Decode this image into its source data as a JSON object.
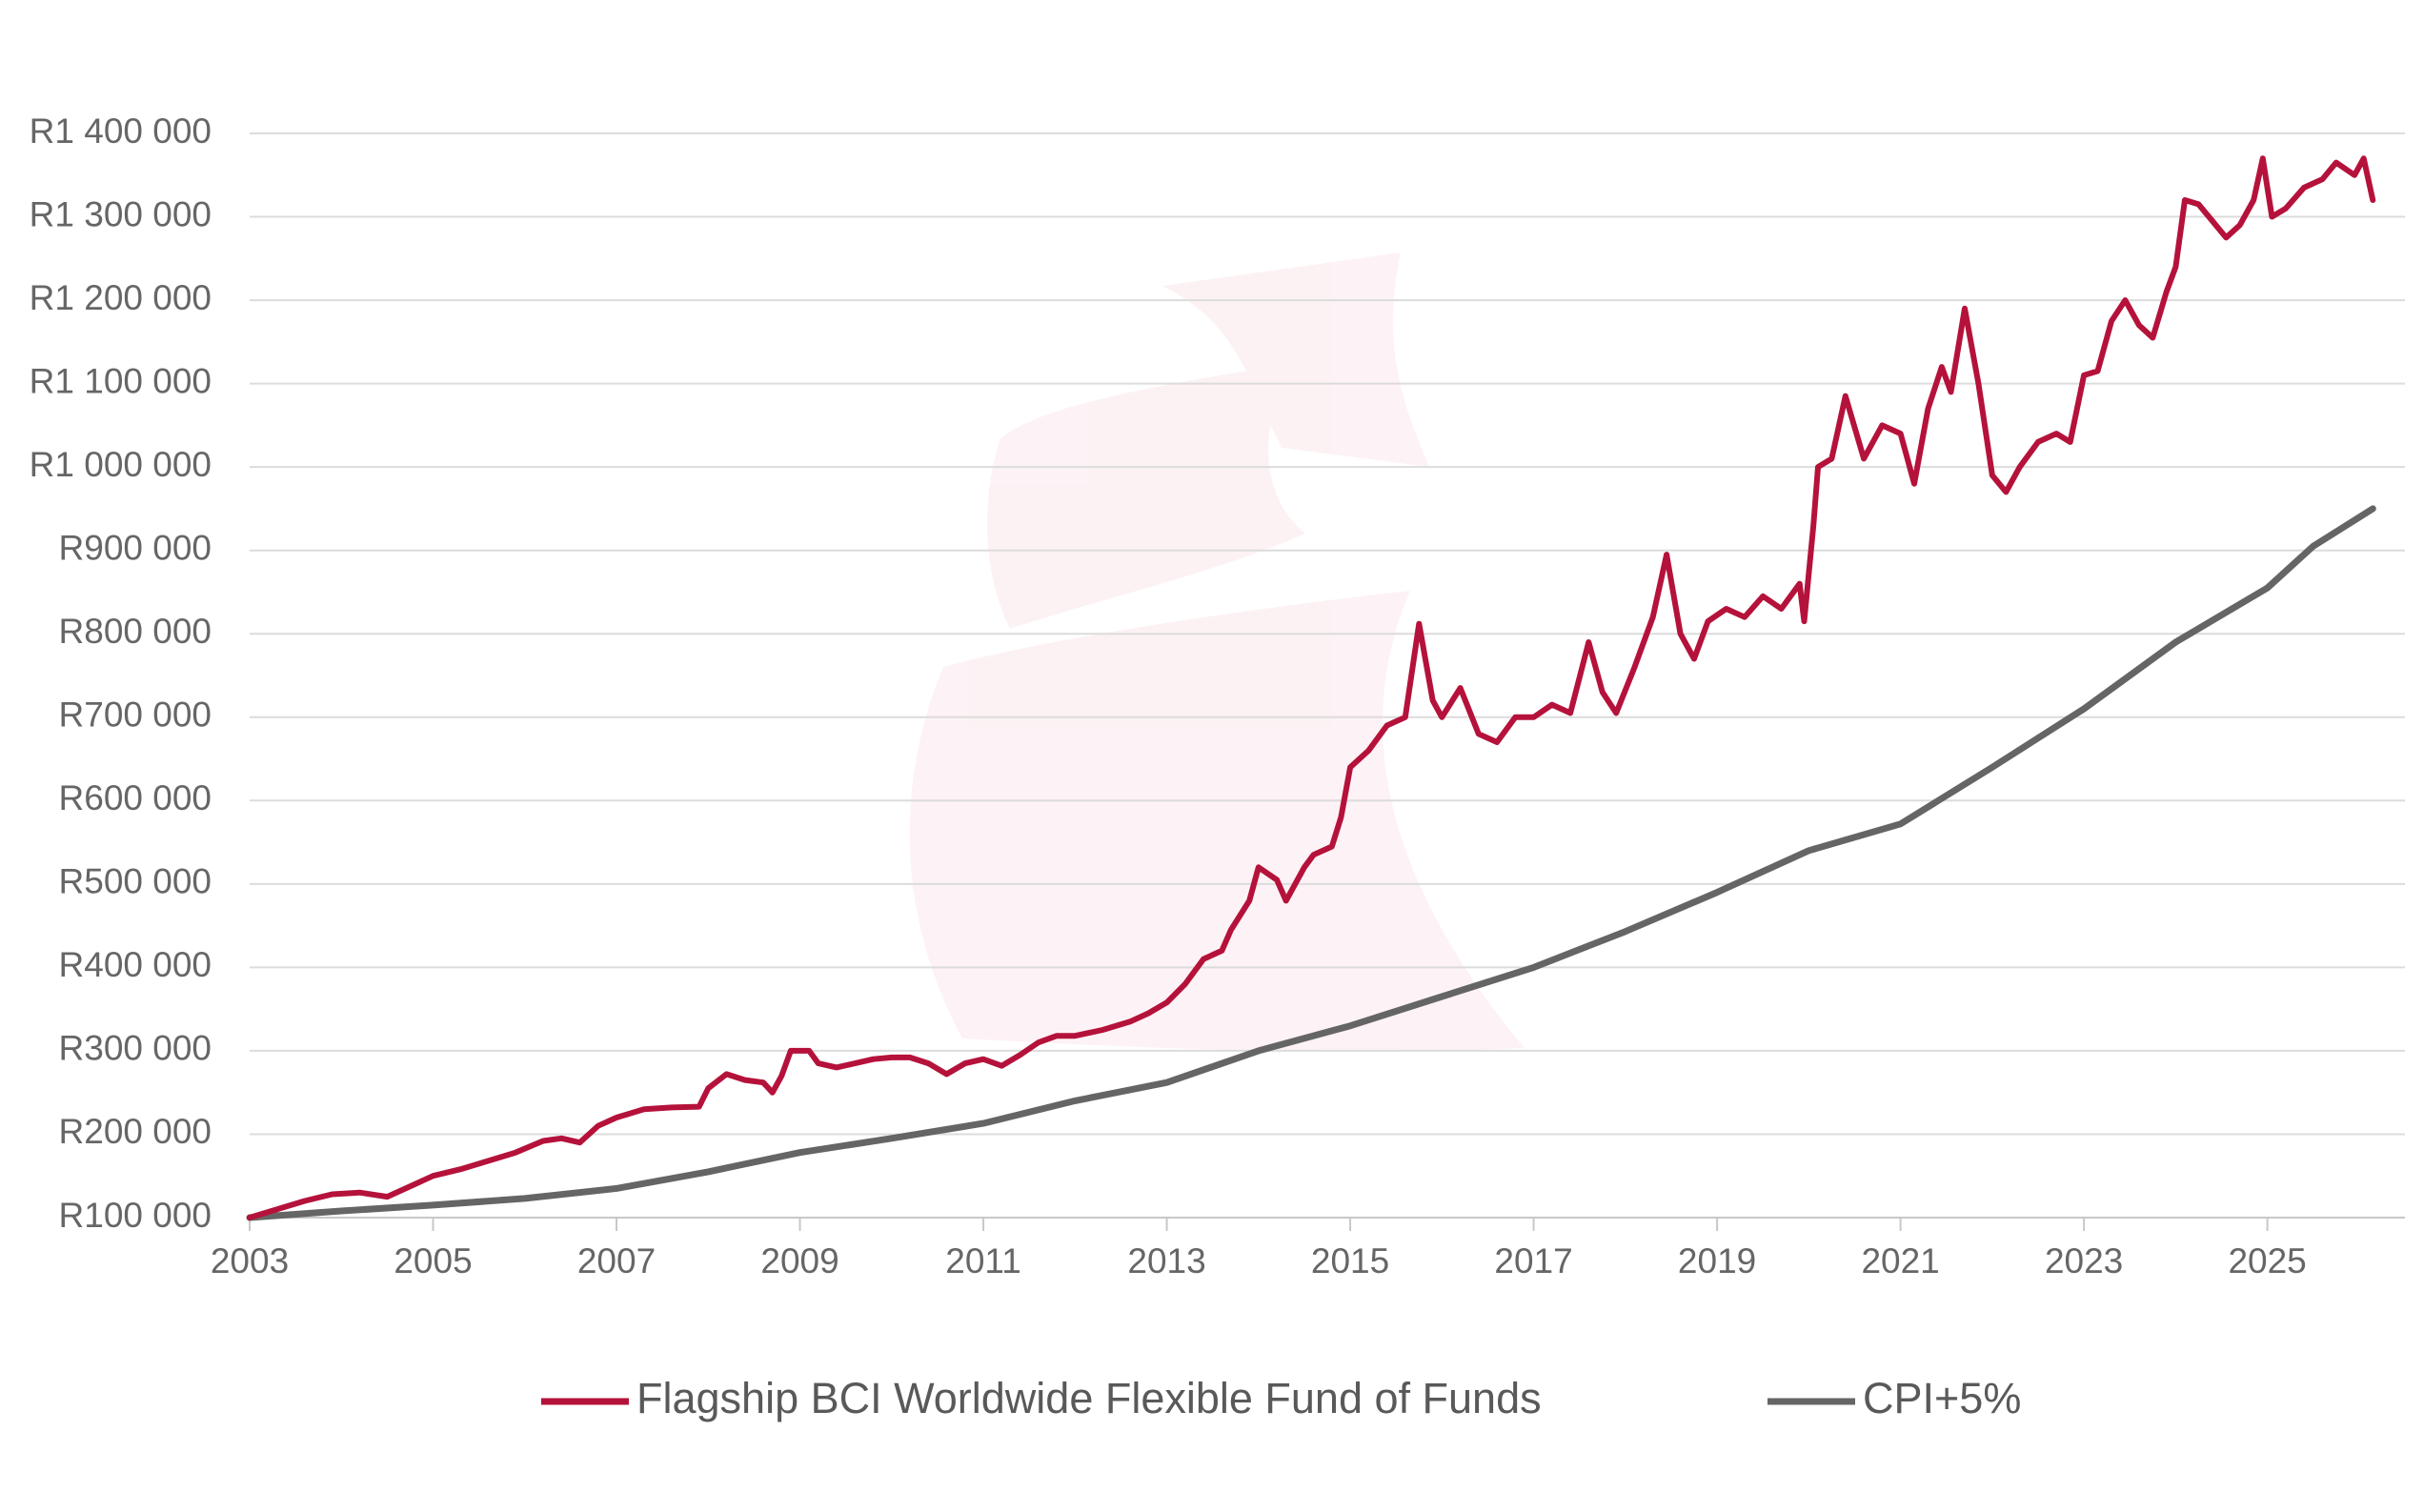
{
  "chart_data": {
    "type": "line",
    "title": "",
    "xlabel": "",
    "ylabel": "",
    "xlim": [
      2003,
      2026.5
    ],
    "ylim": [
      100000,
      1400000
    ],
    "grid": true,
    "legend_position": "bottom",
    "y_ticks": [
      {
        "value": 1400000,
        "label": "R1 400 000"
      },
      {
        "value": 1300000,
        "label": "R1 300 000"
      },
      {
        "value": 1200000,
        "label": "R1 200 000"
      },
      {
        "value": 1100000,
        "label": "R1 100 000"
      },
      {
        "value": 1000000,
        "label": "R1 000 000"
      },
      {
        "value": 900000,
        "label": "R900 000"
      },
      {
        "value": 800000,
        "label": "R800 000"
      },
      {
        "value": 700000,
        "label": "R700 000"
      },
      {
        "value": 600000,
        "label": "R600 000"
      },
      {
        "value": 500000,
        "label": "R500 000"
      },
      {
        "value": 400000,
        "label": "R400 000"
      },
      {
        "value": 300000,
        "label": "R300 000"
      },
      {
        "value": 200000,
        "label": "R200 000"
      },
      {
        "value": 100000,
        "label": "R100 000"
      }
    ],
    "x_ticks": [
      {
        "value": 2003,
        "label": "2003"
      },
      {
        "value": 2005,
        "label": "2005"
      },
      {
        "value": 2007,
        "label": "2007"
      },
      {
        "value": 2009,
        "label": "2009"
      },
      {
        "value": 2011,
        "label": "2011"
      },
      {
        "value": 2013,
        "label": "2013"
      },
      {
        "value": 2015,
        "label": "2015"
      },
      {
        "value": 2017,
        "label": "2017"
      },
      {
        "value": 2019,
        "label": "2019"
      },
      {
        "value": 2021,
        "label": "2021"
      },
      {
        "value": 2023,
        "label": "2023"
      },
      {
        "value": 2025,
        "label": "2025"
      }
    ],
    "series": [
      {
        "name": "Flagship BCI Worldwide Flexible Fund of Funds",
        "color": "#b5123b",
        "points": [
          [
            2003.0,
            100000
          ],
          [
            2003.3,
            110000
          ],
          [
            2003.6,
            120000
          ],
          [
            2003.9,
            128000
          ],
          [
            2004.2,
            130000
          ],
          [
            2004.5,
            125000
          ],
          [
            2004.8,
            140000
          ],
          [
            2005.0,
            150000
          ],
          [
            2005.3,
            158000
          ],
          [
            2005.6,
            168000
          ],
          [
            2005.9,
            178000
          ],
          [
            2006.2,
            192000
          ],
          [
            2006.4,
            195000
          ],
          [
            2006.6,
            190000
          ],
          [
            2006.8,
            210000
          ],
          [
            2007.0,
            220000
          ],
          [
            2007.3,
            230000
          ],
          [
            2007.6,
            232000
          ],
          [
            2007.9,
            233000
          ],
          [
            2008.0,
            255000
          ],
          [
            2008.2,
            272000
          ],
          [
            2008.4,
            265000
          ],
          [
            2008.6,
            262000
          ],
          [
            2008.7,
            250000
          ],
          [
            2008.8,
            270000
          ],
          [
            2008.9,
            300000
          ],
          [
            2009.1,
            300000
          ],
          [
            2009.2,
            285000
          ],
          [
            2009.4,
            280000
          ],
          [
            2009.6,
            285000
          ],
          [
            2009.8,
            290000
          ],
          [
            2010.0,
            292000
          ],
          [
            2010.2,
            292000
          ],
          [
            2010.4,
            285000
          ],
          [
            2010.6,
            272000
          ],
          [
            2010.8,
            285000
          ],
          [
            2011.0,
            290000
          ],
          [
            2011.2,
            282000
          ],
          [
            2011.4,
            295000
          ],
          [
            2011.6,
            310000
          ],
          [
            2011.8,
            318000
          ],
          [
            2012.0,
            318000
          ],
          [
            2012.3,
            325000
          ],
          [
            2012.6,
            335000
          ],
          [
            2012.8,
            345000
          ],
          [
            2013.0,
            358000
          ],
          [
            2013.2,
            380000
          ],
          [
            2013.4,
            410000
          ],
          [
            2013.6,
            420000
          ],
          [
            2013.7,
            445000
          ],
          [
            2013.9,
            480000
          ],
          [
            2014.0,
            520000
          ],
          [
            2014.2,
            505000
          ],
          [
            2014.3,
            480000
          ],
          [
            2014.5,
            520000
          ],
          [
            2014.6,
            535000
          ],
          [
            2014.8,
            545000
          ],
          [
            2014.9,
            580000
          ],
          [
            2015.0,
            640000
          ],
          [
            2015.2,
            660000
          ],
          [
            2015.4,
            690000
          ],
          [
            2015.6,
            700000
          ],
          [
            2015.75,
            812000
          ],
          [
            2015.9,
            720000
          ],
          [
            2016.0,
            700000
          ],
          [
            2016.2,
            735000
          ],
          [
            2016.4,
            680000
          ],
          [
            2016.6,
            670000
          ],
          [
            2016.8,
            700000
          ],
          [
            2017.0,
            700000
          ],
          [
            2017.2,
            715000
          ],
          [
            2017.4,
            705000
          ],
          [
            2017.6,
            790000
          ],
          [
            2017.75,
            730000
          ],
          [
            2017.9,
            705000
          ],
          [
            2018.1,
            760000
          ],
          [
            2018.3,
            820000
          ],
          [
            2018.45,
            895000
          ],
          [
            2018.6,
            800000
          ],
          [
            2018.75,
            770000
          ],
          [
            2018.9,
            815000
          ],
          [
            2019.1,
            830000
          ],
          [
            2019.3,
            820000
          ],
          [
            2019.5,
            845000
          ],
          [
            2019.7,
            830000
          ],
          [
            2019.9,
            860000
          ],
          [
            2019.95,
            815000
          ],
          [
            2020.05,
            930000
          ],
          [
            2020.1,
            1000000
          ],
          [
            2020.25,
            1010000
          ],
          [
            2020.4,
            1085000
          ],
          [
            2020.6,
            1010000
          ],
          [
            2020.8,
            1050000
          ],
          [
            2021.0,
            1040000
          ],
          [
            2021.15,
            980000
          ],
          [
            2021.3,
            1070000
          ],
          [
            2021.45,
            1120000
          ],
          [
            2021.55,
            1090000
          ],
          [
            2021.7,
            1190000
          ],
          [
            2021.85,
            1100000
          ],
          [
            2022.0,
            990000
          ],
          [
            2022.15,
            970000
          ],
          [
            2022.3,
            1000000
          ],
          [
            2022.5,
            1030000
          ],
          [
            2022.7,
            1040000
          ],
          [
            2022.85,
            1030000
          ],
          [
            2023.0,
            1110000
          ],
          [
            2023.15,
            1115000
          ],
          [
            2023.3,
            1175000
          ],
          [
            2023.45,
            1200000
          ],
          [
            2023.6,
            1170000
          ],
          [
            2023.75,
            1155000
          ],
          [
            2023.9,
            1210000
          ],
          [
            2024.0,
            1240000
          ],
          [
            2024.1,
            1320000
          ],
          [
            2024.25,
            1315000
          ],
          [
            2024.4,
            1295000
          ],
          [
            2024.55,
            1275000
          ],
          [
            2024.7,
            1290000
          ],
          [
            2024.85,
            1320000
          ],
          [
            2024.95,
            1370000
          ],
          [
            2025.05,
            1300000
          ],
          [
            2025.2,
            1310000
          ],
          [
            2025.4,
            1335000
          ],
          [
            2025.6,
            1345000
          ],
          [
            2025.75,
            1365000
          ],
          [
            2025.95,
            1350000
          ],
          [
            2026.05,
            1370000
          ],
          [
            2026.15,
            1320000
          ]
        ]
      },
      {
        "name": "CPI+5%",
        "color": "#656565",
        "points": [
          [
            2003.0,
            100000
          ],
          [
            2004.0,
            108000
          ],
          [
            2005.0,
            115000
          ],
          [
            2006.0,
            123000
          ],
          [
            2007.0,
            135000
          ],
          [
            2008.0,
            155000
          ],
          [
            2009.0,
            178000
          ],
          [
            2010.0,
            195000
          ],
          [
            2011.0,
            213000
          ],
          [
            2012.0,
            240000
          ],
          [
            2013.0,
            262000
          ],
          [
            2014.0,
            300000
          ],
          [
            2015.0,
            330000
          ],
          [
            2016.0,
            365000
          ],
          [
            2017.0,
            400000
          ],
          [
            2018.0,
            443000
          ],
          [
            2019.0,
            490000
          ],
          [
            2020.0,
            540000
          ],
          [
            2021.0,
            572000
          ],
          [
            2022.0,
            640000
          ],
          [
            2023.0,
            710000
          ],
          [
            2024.0,
            790000
          ],
          [
            2025.0,
            855000
          ],
          [
            2025.5,
            905000
          ],
          [
            2026.15,
            950000
          ]
        ]
      }
    ]
  }
}
